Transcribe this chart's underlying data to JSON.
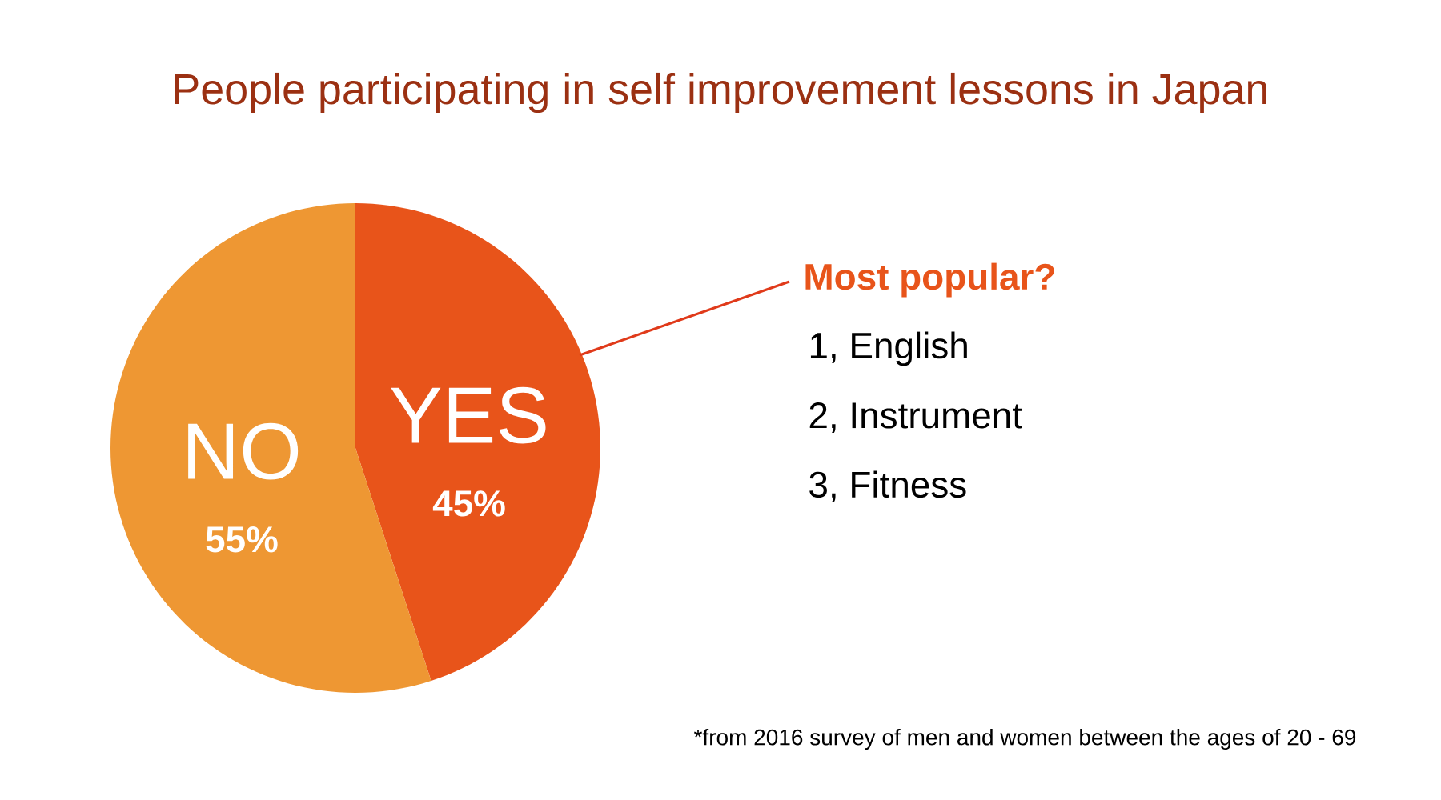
{
  "chart_data": {
    "type": "pie",
    "title": "People participating in self improvement lessons in Japan",
    "categories": [
      "YES",
      "NO"
    ],
    "values": [
      45,
      55
    ],
    "colors": [
      "#e8541a",
      "#ee9733"
    ],
    "value_labels": [
      "45%",
      "55%"
    ],
    "annotations": [
      "Most popular?",
      "1, English",
      "2, Instrument",
      "3, Fitness",
      "*from 2016 survey of men and women between the ages of 20 - 69"
    ]
  }
}
